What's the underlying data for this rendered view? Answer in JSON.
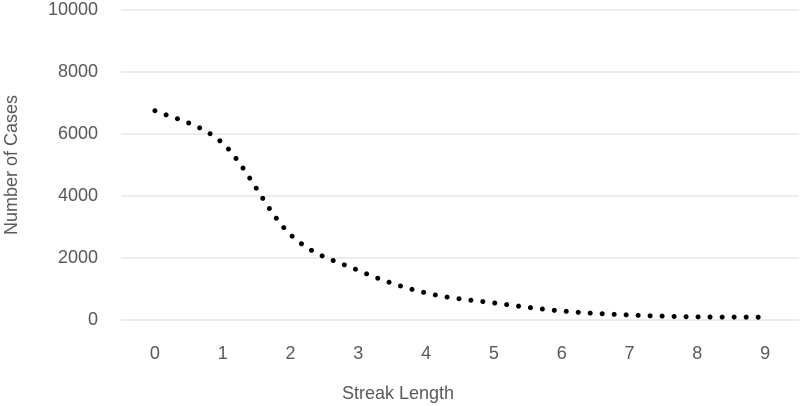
{
  "chart_data": {
    "type": "line",
    "x_label": "Streak Length",
    "y_label": "Number of Cases",
    "x": [
      0,
      1,
      2,
      3,
      4,
      5,
      6,
      7,
      8,
      9
    ],
    "series": [
      {
        "color": "#000000",
        "values": [
          6750,
          5700,
          2750,
          1600,
          870,
          550,
          290,
          160,
          100,
          90
        ]
      }
    ],
    "xlim": [
      -0.5,
      9.5
    ],
    "xticks": [
      0,
      1,
      2,
      3,
      4,
      5,
      6,
      7,
      8,
      9
    ],
    "ylim": [
      0,
      10000
    ],
    "yticks": [
      0,
      2000,
      4000,
      6000,
      8000,
      10000
    ],
    "grid": true,
    "smooth": true,
    "line_style": "dotted"
  }
}
